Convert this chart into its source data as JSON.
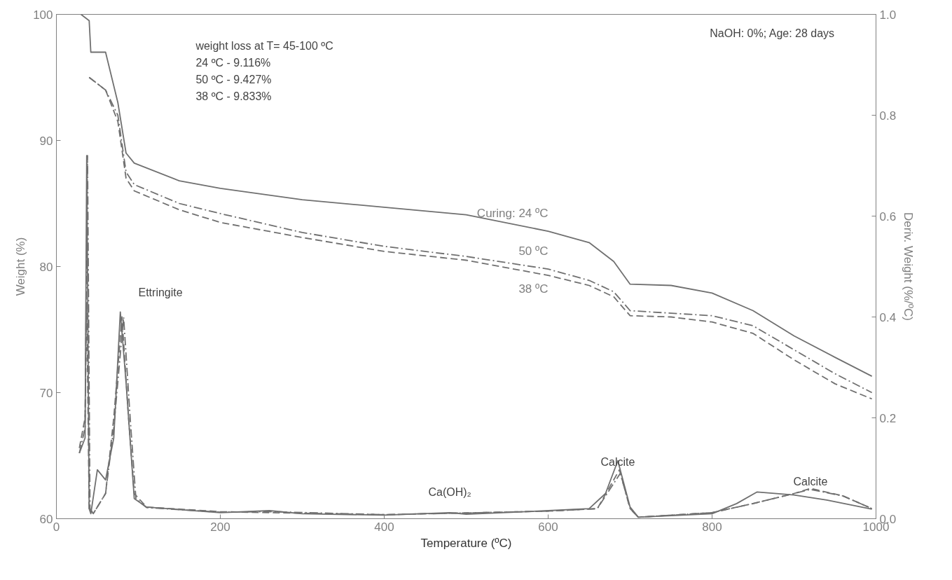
{
  "chart_data": {
    "type": "line",
    "xlabel": "Temperature (ºC)",
    "ylabel": "Weight (%)",
    "y2label": "Deriv. Weight (%/ºC)",
    "xlim": [
      0,
      1000
    ],
    "ylim": [
      60,
      100
    ],
    "y2lim": [
      0,
      1
    ],
    "xticks": [
      0,
      200,
      400,
      600,
      800,
      1000
    ],
    "yticks": [
      60,
      70,
      80,
      90,
      100
    ],
    "y2ticks": [
      {
        "value": 0,
        "label": "0.0"
      },
      0.2,
      0.4,
      0.6,
      0.8,
      {
        "value": 1,
        "label": "1.0"
      }
    ],
    "grid": false,
    "marker": "none",
    "annotations": [
      "NaOH: 0%; Age: 28 days",
      "weight loss at T= 45-100 ºC",
      "24 ºC - 9.116%",
      "50 ºC - 9.427%",
      "38 ºC - 9.833%",
      "Ettringite",
      "Ca(OH)₂",
      "Calcite",
      "Calcite"
    ],
    "series": [
      {
        "name": "Curing: 24 ºC",
        "color": "#707070",
        "line_style": "solid",
        "x": [
          30,
          40,
          42,
          60,
          75,
          85,
          95,
          150,
          200,
          300,
          400,
          500,
          600,
          650,
          680,
          700,
          750,
          800,
          850,
          900,
          950,
          995
        ],
        "values": [
          100,
          99.5,
          97,
          97,
          93,
          89,
          88.2,
          86.8,
          86.2,
          85.3,
          84.7,
          84.1,
          82.8,
          81.9,
          80.4,
          78.6,
          78.5,
          77.9,
          76.5,
          74.5,
          72.8,
          71.3
        ]
      },
      {
        "name": "50 ºC",
        "color": "#707070",
        "line_style": "dashdot",
        "x": [
          40,
          60,
          75,
          85,
          95,
          150,
          200,
          300,
          400,
          500,
          600,
          650,
          680,
          700,
          750,
          800,
          850,
          900,
          950,
          995
        ],
        "values": [
          95,
          94,
          92,
          87.5,
          86.5,
          85,
          84.2,
          82.7,
          81.6,
          80.8,
          79.8,
          78.9,
          78,
          76.5,
          76.3,
          76.1,
          75.3,
          73.4,
          71.5,
          70
        ]
      },
      {
        "name": "38 ºC",
        "color": "#707070",
        "line_style": "dashed",
        "x": [
          40,
          60,
          75,
          85,
          95,
          150,
          200,
          300,
          400,
          500,
          600,
          650,
          680,
          700,
          750,
          800,
          850,
          900,
          950,
          995
        ],
        "values": [
          95,
          94,
          91.5,
          87,
          86,
          84.5,
          83.5,
          82.3,
          81.2,
          80.5,
          79.3,
          78.5,
          77.6,
          76.1,
          76,
          75.6,
          74.7,
          72.6,
          70.7,
          69.5
        ]
      },
      {
        "axis": "y2",
        "color": "#707070",
        "line_style": "solid",
        "x": [
          28,
          35,
          37,
          40,
          42,
          50,
          60,
          70,
          78,
          85,
          95,
          110,
          200,
          260,
          300,
          400,
          480,
          500,
          600,
          650,
          670,
          685,
          700,
          710,
          800,
          830,
          855,
          900,
          940,
          995
        ],
        "values": [
          0.13,
          0.16,
          0.72,
          0.02,
          0.01,
          0.097,
          0.077,
          0.16,
          0.41,
          0.27,
          0.04,
          0.023,
          0.012,
          0.016,
          0.01,
          0.007,
          0.012,
          0.009,
          0.016,
          0.02,
          0.05,
          0.115,
          0.023,
          0.003,
          0.01,
          0.03,
          0.053,
          0.047,
          0.037,
          0.019
        ]
      },
      {
        "axis": "y2",
        "color": "#707070",
        "line_style": "dashed",
        "x": [
          28,
          35,
          37,
          40,
          45,
          60,
          70,
          80,
          88,
          95,
          110,
          200,
          260,
          400,
          600,
          660,
          687,
          700,
          710,
          800,
          850,
          900,
          920,
          960,
          995
        ],
        "values": [
          0.14,
          0.2,
          0.43,
          0.02,
          0.01,
          0.05,
          0.2,
          0.4,
          0.2,
          0.05,
          0.023,
          0.014,
          0.012,
          0.008,
          0.015,
          0.02,
          0.097,
          0.02,
          0.003,
          0.012,
          0.03,
          0.05,
          0.06,
          0.045,
          0.02
        ]
      },
      {
        "axis": "y2",
        "color": "#707070",
        "line_style": "dashdot",
        "x": [
          28,
          35,
          38,
          41,
          45,
          60,
          70,
          82,
          90,
          97,
          110,
          200,
          260,
          400,
          600,
          660,
          688,
          700,
          710,
          800,
          850,
          900,
          920,
          960,
          995
        ],
        "values": [
          0.13,
          0.18,
          0.72,
          0.02,
          0.01,
          0.05,
          0.18,
          0.4,
          0.2,
          0.04,
          0.022,
          0.013,
          0.014,
          0.008,
          0.015,
          0.02,
          0.09,
          0.02,
          0.003,
          0.012,
          0.03,
          0.05,
          0.058,
          0.045,
          0.02
        ]
      }
    ]
  }
}
